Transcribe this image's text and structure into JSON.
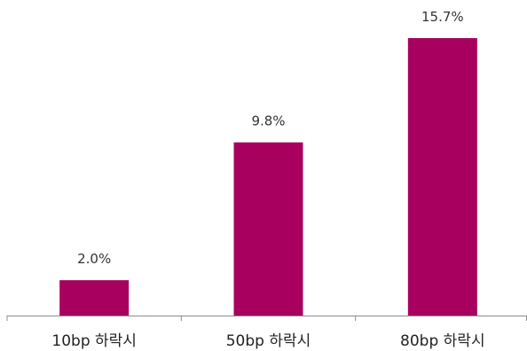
{
  "chart_data": {
    "type": "bar",
    "title": "",
    "xlabel": "",
    "ylabel": "",
    "categories": [
      "10bp 하락시",
      "50bp 하락시",
      "80bp 하락시"
    ],
    "values": [
      2.0,
      9.8,
      15.7
    ],
    "data_labels": [
      "2.0%",
      "9.8%",
      "15.7%"
    ],
    "ylim": [
      0,
      16
    ],
    "grid": false,
    "legend": "none",
    "colors": {
      "bar": "#a8005f",
      "axis": "#8c8c8c",
      "text": "#333333"
    }
  }
}
